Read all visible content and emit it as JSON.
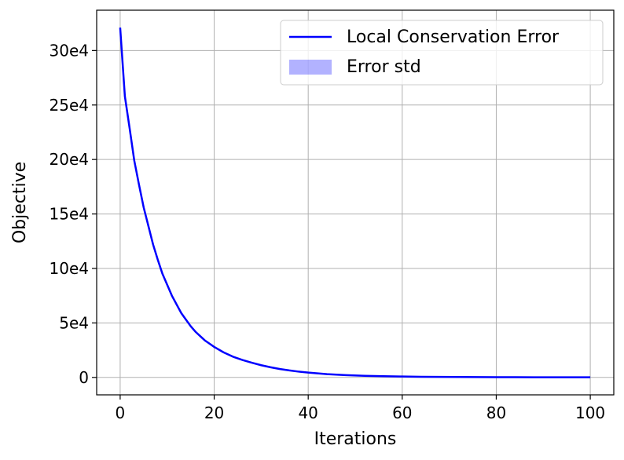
{
  "chart_data": {
    "type": "line",
    "title": "",
    "xlabel": "Iterations",
    "ylabel": "Objective",
    "xlim": [
      -5,
      105
    ],
    "ylim": [
      -16000,
      337000
    ],
    "xticks": [
      0,
      20,
      40,
      60,
      80,
      100
    ],
    "yticks": [
      {
        "value": 0,
        "label": "0"
      },
      {
        "value": 50000,
        "label": "5e4"
      },
      {
        "value": 100000,
        "label": "10e4"
      },
      {
        "value": 150000,
        "label": "15e4"
      },
      {
        "value": 200000,
        "label": "20e4"
      },
      {
        "value": 250000,
        "label": "25e4"
      },
      {
        "value": 300000,
        "label": "30e4"
      }
    ],
    "grid": true,
    "legend_position": "top-right",
    "series": [
      {
        "name": "Local Conservation Error",
        "color": "#0000ff",
        "x": [
          0,
          1,
          2,
          3,
          4,
          5,
          6,
          7,
          8,
          9,
          10,
          11,
          12,
          13,
          14,
          15,
          16,
          17,
          18,
          19,
          20,
          22,
          24,
          26,
          28,
          30,
          32,
          34,
          36,
          38,
          40,
          44,
          48,
          52,
          56,
          60,
          64,
          68,
          72,
          76,
          80,
          84,
          88,
          92,
          96,
          100
        ],
        "y": [
          321000,
          258000,
          229000,
          199000,
          177000,
          156000,
          139000,
          122000,
          108000,
          95000,
          85000,
          75000,
          67000,
          59000,
          53000,
          47000,
          42000,
          38000,
          34000,
          31000,
          28000,
          23000,
          19000,
          16000,
          13500,
          11200,
          9300,
          7700,
          6400,
          5300,
          4400,
          3000,
          2100,
          1500,
          1100,
          800,
          600,
          450,
          350,
          280,
          220,
          180,
          150,
          120,
          100,
          80
        ]
      }
    ],
    "bands": [
      {
        "name": "Error std",
        "color": "#0000ff",
        "opacity": 0.3
      }
    ]
  }
}
